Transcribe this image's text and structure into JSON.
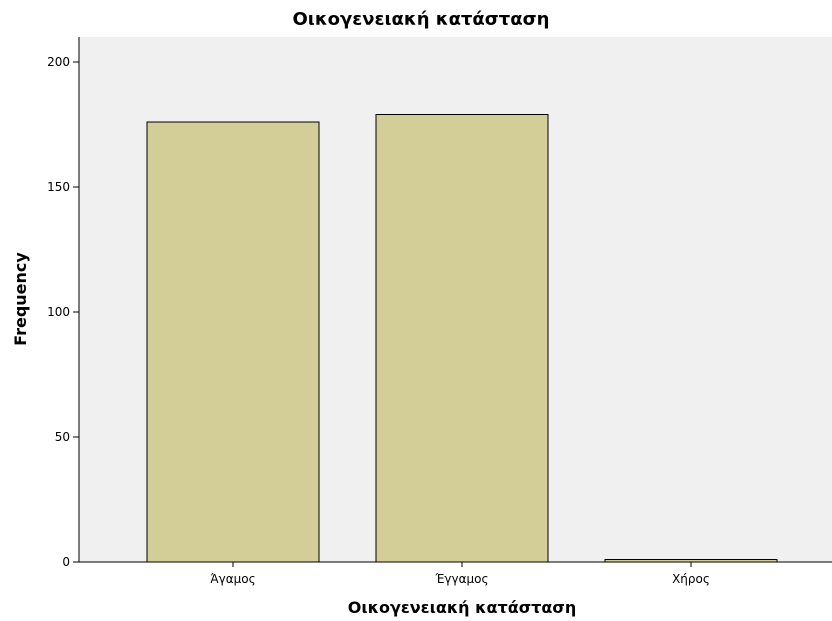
{
  "chart_data": {
    "type": "bar",
    "title": "Οικογενειακή κατάσταση",
    "xlabel": "Οικογενειακή κατάσταση",
    "ylabel": "Frequency",
    "categories": [
      "Άγαμος",
      "Έγγαμος",
      "Χήρος"
    ],
    "values": [
      176,
      179,
      1
    ],
    "ylim": [
      0,
      210
    ],
    "yticks": [
      0,
      50,
      100,
      150,
      200
    ],
    "grid": false,
    "legend": "none",
    "colors": {
      "plot_background": "#f0f0f0",
      "bar_fill": "#d3ce97",
      "bar_stroke": "#000000"
    }
  }
}
